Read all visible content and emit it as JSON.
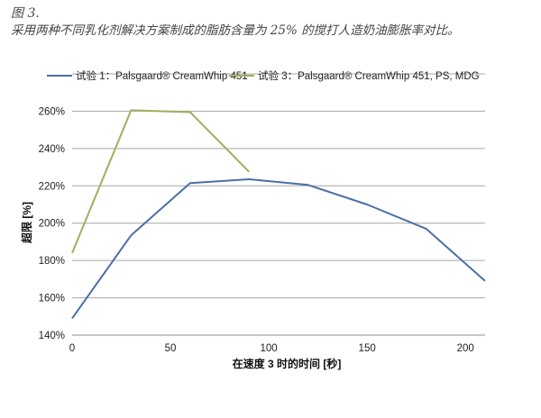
{
  "figure": {
    "title": "图 3.",
    "subtitle": "采用两种不同乳化剂解决方案制成的脂肪含量为 25% 的搅打人造奶油膨胀率对比。"
  },
  "chart_data": {
    "type": "line",
    "xlabel": "在速度 3 时的时间 [秒]",
    "ylabel": "超限 [%]",
    "xlim": [
      0,
      210
    ],
    "ylim": [
      140,
      280
    ],
    "x_ticks": [
      0,
      50,
      100,
      150,
      200
    ],
    "y_ticks": [
      140,
      160,
      180,
      200,
      220,
      240,
      260
    ],
    "y_tick_labels": [
      "140%",
      "160%",
      "180%",
      "200%",
      "220%",
      "240%",
      "260%"
    ],
    "grid": "horizontal",
    "legend_position": "top",
    "series": [
      {
        "name": "试验 1：Palsgaard® CreamWhip 451",
        "color": "#4a6fa5",
        "x": [
          0,
          30,
          60,
          90,
          120,
          150,
          180,
          210
        ],
        "y": [
          149,
          193.5,
          221.5,
          223.5,
          220.5,
          210,
          197,
          169
        ]
      },
      {
        "name": "试验 3：Palsgaard® CreamWhip 451, PS, MDG",
        "color": "#9bb25a",
        "x": [
          0,
          30,
          60,
          90
        ],
        "y": [
          184,
          260.5,
          259.5,
          227.5
        ]
      }
    ]
  }
}
